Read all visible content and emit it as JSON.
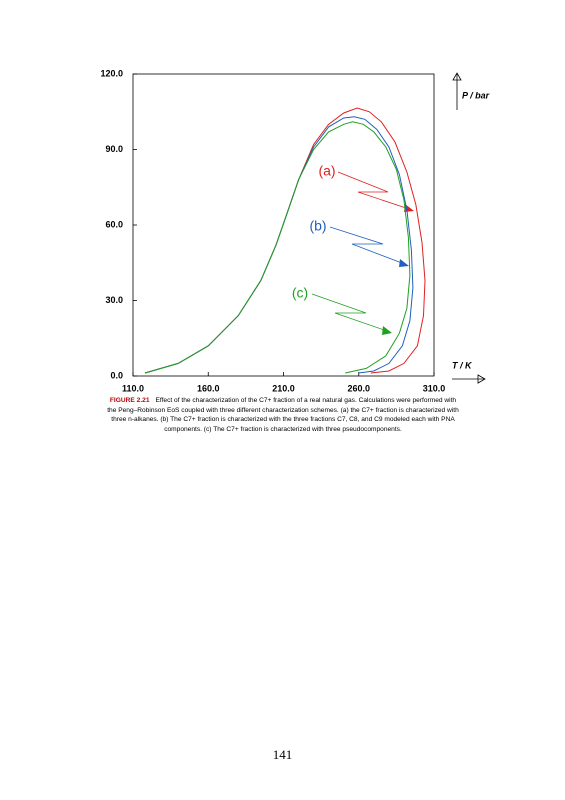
{
  "chart_data": {
    "type": "line",
    "ylabel": "P / bar",
    "xlabel": "T / K",
    "xlim": [
      110,
      310
    ],
    "ylim": [
      0,
      120
    ],
    "xticks": [
      {
        "value": 110,
        "label": "110.0"
      },
      {
        "value": 160,
        "label": "160.0"
      },
      {
        "value": 210,
        "label": "210.0"
      },
      {
        "value": 260,
        "label": "260.0"
      },
      {
        "value": 310,
        "label": "310.0"
      }
    ],
    "yticks": [
      {
        "value": 0,
        "label": "0.0"
      },
      {
        "value": 30,
        "label": "30.0"
      },
      {
        "value": 60,
        "label": "60.0"
      },
      {
        "value": 90,
        "label": "90.0"
      },
      {
        "value": 120,
        "label": "120.0"
      }
    ],
    "series": [
      {
        "name": "(a)",
        "color": "#e02020",
        "x": [
          118,
          140,
          160,
          180,
          195,
          205,
          212,
          220,
          230,
          240,
          250,
          259,
          267,
          275,
          284,
          292,
          298,
          302,
          304,
          303,
          299,
          290,
          280,
          268
        ],
        "values": [
          1.2,
          5,
          12,
          24,
          38,
          52,
          64,
          78,
          92,
          100,
          104.5,
          106.5,
          105,
          101,
          93,
          81,
          68,
          53,
          38,
          24,
          12,
          5,
          2,
          1.2
        ]
      },
      {
        "name": "(b)",
        "color": "#1f5fbf",
        "x": [
          118,
          140,
          160,
          180,
          195,
          205,
          212,
          220,
          230,
          240,
          250,
          257,
          264,
          272,
          280,
          287,
          292,
          295,
          296,
          294,
          289,
          280,
          270,
          260
        ],
        "values": [
          1.2,
          5,
          12,
          24,
          38,
          52,
          64,
          78,
          91,
          99,
          102.5,
          103,
          102,
          98,
          91,
          80,
          66,
          50,
          35,
          22,
          12,
          5,
          2,
          1.2
        ]
      },
      {
        "name": "(c)",
        "color": "#20a020",
        "x": [
          118,
          140,
          160,
          180,
          195,
          205,
          212,
          220,
          230,
          240,
          250,
          256,
          263,
          270,
          278,
          285,
          290,
          293,
          294,
          292,
          287,
          278,
          265,
          251
        ],
        "values": [
          1.2,
          5,
          12,
          24,
          38,
          52,
          64,
          78,
          90,
          97,
          100,
          101,
          100,
          97,
          91,
          82,
          70,
          55,
          40,
          27,
          17,
          8,
          3,
          1.2
        ]
      }
    ]
  },
  "caption": {
    "label": "FIGURE 2.21",
    "text": "Effect of the characterization of the C7+ fraction of a real natural gas. Calculations were performed with the Peng–Robinson EoS coupled with three different characterization schemes. (a) the C7+ fraction is characterized with three n-alkanes. (b) The C7+ fraction is characterized with the three fractions C7, C8, and C9 modeled each with PNA components. (c) The C7+ fraction is characterized with three pseudocomponents."
  },
  "page_number": "141"
}
